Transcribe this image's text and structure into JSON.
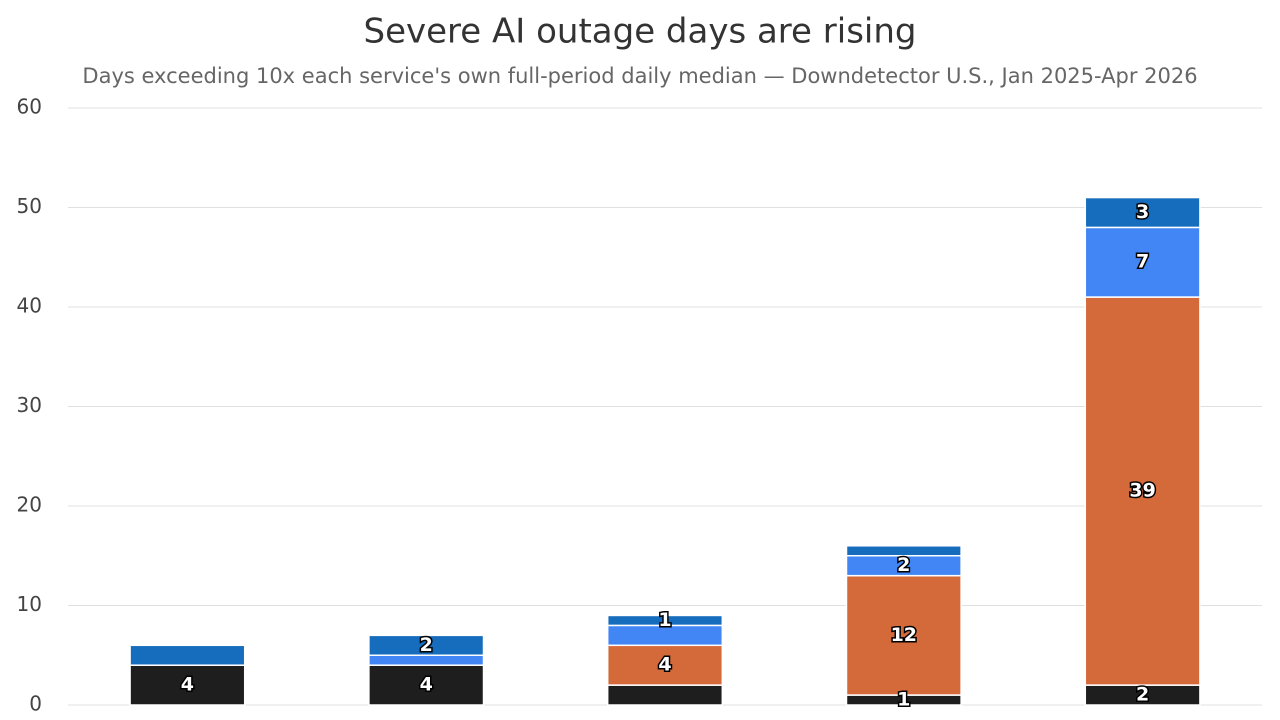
{
  "chart_data": {
    "type": "stacked_bar",
    "title": "Severe AI outage days are rising",
    "subtitle": "Days exceeding 10x each service's own full-period daily median — Downdetector U.S., Jan 2025-Apr 2026",
    "categories": [
      null,
      null,
      null,
      null,
      null
    ],
    "series": [
      {
        "color": "#1e1e1e",
        "values": [
          4,
          4,
          2,
          1,
          2
        ],
        "value_labels": [
          "4",
          "4",
          null,
          "1",
          "2"
        ]
      },
      {
        "color": "#d4693a",
        "values": [
          0,
          0,
          4,
          12,
          39
        ],
        "value_labels": [
          null,
          null,
          "4",
          "12",
          "39"
        ]
      },
      {
        "color": "#4285f4",
        "values": [
          0,
          1,
          2,
          2,
          7
        ],
        "value_labels": [
          null,
          null,
          null,
          "2",
          "7"
        ]
      },
      {
        "color": "#166dbd",
        "values": [
          2,
          2,
          1,
          1,
          3
        ],
        "value_labels": [
          null,
          "2",
          "1",
          null,
          "3"
        ]
      }
    ],
    "ylim": [
      0,
      60
    ],
    "yticks": [
      0,
      10,
      20,
      30,
      40,
      50,
      60
    ],
    "grid": true
  }
}
